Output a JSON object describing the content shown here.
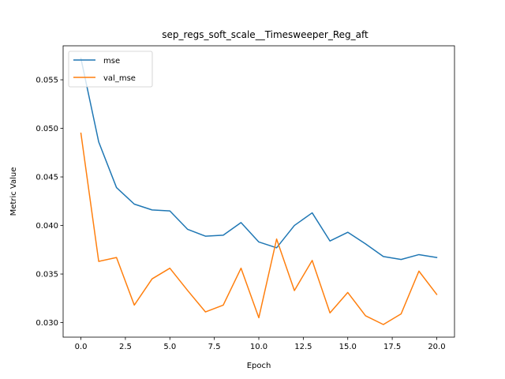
{
  "chart_data": {
    "type": "line",
    "title": "sep_regs_soft_scale__Timesweeper_Reg_aft",
    "xlabel": "Epoch",
    "ylabel": "Metric Value",
    "xlim": [
      -1.0,
      21.0
    ],
    "ylim": [
      0.0285,
      0.0585
    ],
    "xticks": [
      0.0,
      2.5,
      5.0,
      7.5,
      10.0,
      12.5,
      15.0,
      17.5,
      20.0
    ],
    "xtick_labels": [
      "0.0",
      "2.5",
      "5.0",
      "7.5",
      "10.0",
      "12.5",
      "15.0",
      "17.5",
      "20.0"
    ],
    "yticks": [
      0.03,
      0.035,
      0.04,
      0.045,
      0.05,
      0.055
    ],
    "ytick_labels": [
      "0.030",
      "0.035",
      "0.040",
      "0.045",
      "0.050",
      "0.055"
    ],
    "grid": false,
    "legend_position": "top-left",
    "x": [
      0,
      1,
      2,
      3,
      4,
      5,
      6,
      7,
      8,
      9,
      10,
      11,
      12,
      13,
      14,
      15,
      16,
      17,
      18,
      19,
      20
    ],
    "series": [
      {
        "name": "mse",
        "color": "#1f77b4",
        "values": [
          0.0572,
          0.0486,
          0.0439,
          0.0422,
          0.0416,
          0.0415,
          0.0396,
          0.0389,
          0.039,
          0.0403,
          0.0383,
          0.0377,
          0.04,
          0.0413,
          0.0384,
          0.0393,
          0.0381,
          0.0368,
          0.0365,
          0.037,
          0.0367
        ]
      },
      {
        "name": "val_mse",
        "color": "#ff7f0e",
        "values": [
          0.0495,
          0.0363,
          0.0367,
          0.0318,
          0.0345,
          0.0356,
          0.0333,
          0.0311,
          0.0318,
          0.0356,
          0.0305,
          0.0386,
          0.0333,
          0.0364,
          0.031,
          0.0331,
          0.0307,
          0.0298,
          0.0309,
          0.0353,
          0.0329
        ]
      }
    ]
  }
}
